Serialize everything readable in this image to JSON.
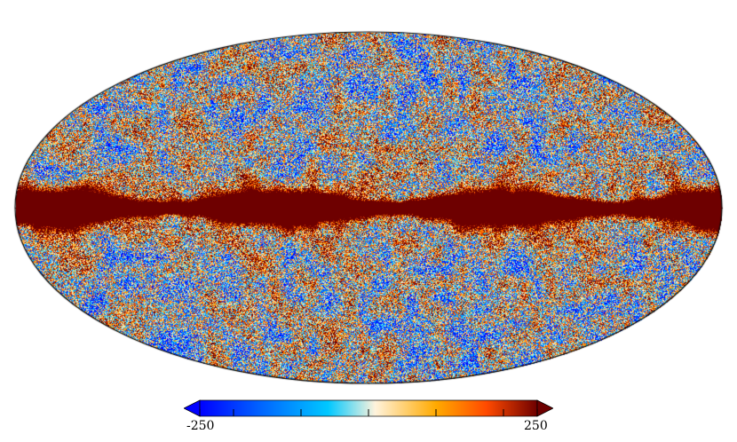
{
  "colorbar": {
    "min_label": "-250",
    "max_label": "250",
    "min_value": -250,
    "max_value": 250,
    "extend": "both",
    "colors": [
      "#0000ff",
      "#0064ff",
      "#00c8ff",
      "#fff3dc",
      "#ffaa00",
      "#ff4a00",
      "#6e0000"
    ]
  },
  "map": {
    "projection": "mollweide",
    "background": "#ffffff",
    "outline_color": "#000000",
    "galactic_band_color": "#6e0000"
  }
}
